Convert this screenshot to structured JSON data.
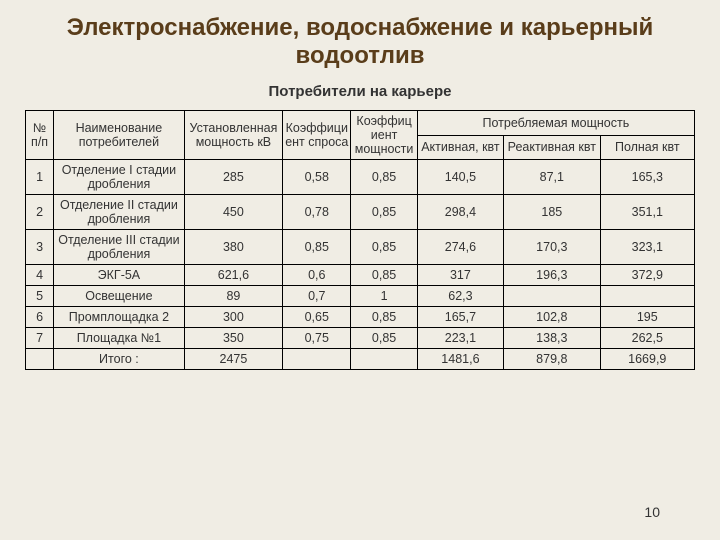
{
  "background_color": "#f0ede4",
  "title_color": "#5a3d1a",
  "text_color": "#333333",
  "title_fontsize": 24,
  "subtitle_fontsize": 15,
  "cell_fontsize": 12.5,
  "page_number_fontsize": 14,
  "title": "Электроснабжение, водоснабжение и карьерный водоотлив",
  "subtitle": "Потребители на карьере",
  "page_number": "10",
  "header": {
    "num": "№ п/п",
    "name": "Наименование потребителей",
    "installed": "Установленная мощность кВ",
    "demand_coef": "Коэффициент спроса",
    "power_coef": "Коэффициент мощности",
    "consumed_group": "Потребляемая мощность",
    "active": "Активная, квт",
    "reactive": "Реактивная квт",
    "full": "Полная квт"
  },
  "rows": [
    {
      "num": "1",
      "name": "Отделение I стадии дробления",
      "installed": "285",
      "kdem": "0,58",
      "kpf": "0,85",
      "active": "140,5",
      "reactive": "87,1",
      "full": "165,3"
    },
    {
      "num": "2",
      "name": "Отделение II стадии дробления",
      "installed": "450",
      "kdem": "0,78",
      "kpf": "0,85",
      "active": "298,4",
      "reactive": "185",
      "full": "351,1"
    },
    {
      "num": "3",
      "name": "Отделение III стадии дробления",
      "installed": "380",
      "kdem": "0,85",
      "kpf": "0,85",
      "active": "274,6",
      "reactive": "170,3",
      "full": "323,1"
    },
    {
      "num": "4",
      "name": "ЭКГ-5А",
      "installed": "621,6",
      "kdem": "0,6",
      "kpf": "0,85",
      "active": "317",
      "reactive": "196,3",
      "full": "372,9"
    },
    {
      "num": "5",
      "name": "Освещение",
      "installed": "89",
      "kdem": "0,7",
      "kpf": "1",
      "active": "62,3",
      "reactive": "",
      "full": ""
    },
    {
      "num": "6",
      "name": "Промплощадка 2",
      "installed": "300",
      "kdem": "0,65",
      "kpf": "0,85",
      "active": "165,7",
      "reactive": "102,8",
      "full": "195"
    },
    {
      "num": "7",
      "name": "Площадка №1",
      "installed": "350",
      "kdem": "0,75",
      "kpf": "0,85",
      "active": "223,1",
      "reactive": "138,3",
      "full": "262,5"
    }
  ],
  "totals": {
    "label": "Итого :",
    "installed": "2475",
    "kdem": "",
    "kpf": "",
    "active": "1481,6",
    "reactive": "879,8",
    "full": "1669,9"
  }
}
